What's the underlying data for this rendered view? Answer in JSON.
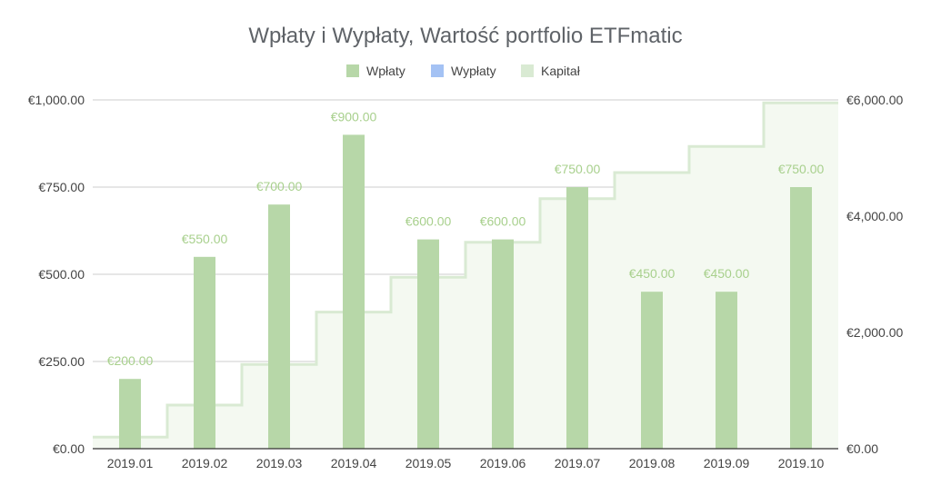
{
  "chart_data": {
    "type": "bar",
    "title": "Wpłaty i Wypłaty, Wartość portfolio  ETFmatic",
    "categories": [
      "2019.01",
      "2019.02",
      "2019.03",
      "2019.04",
      "2019.05",
      "2019.06",
      "2019.07",
      "2019.08",
      "2019.09",
      "2019.10"
    ],
    "legend": {
      "position": "top",
      "entries": [
        "Wpłaty",
        "Wypłaty",
        "Kapitał"
      ]
    },
    "series": [
      {
        "name": "Wpłaty",
        "type": "bar",
        "axis": "left",
        "color": "#b7d7a8",
        "values": [
          200,
          550,
          700,
          900,
          600,
          600,
          750,
          450,
          450,
          750
        ],
        "data_labels": [
          "€200.00",
          "€550.00",
          "€700.00",
          "€900.00",
          "€600.00",
          "€600.00",
          "€750.00",
          "€450.00",
          "€450.00",
          "€750.00"
        ]
      },
      {
        "name": "Wypłaty",
        "type": "bar",
        "axis": "left",
        "color": "#a4c2f4",
        "values": [
          0,
          0,
          0,
          0,
          0,
          0,
          0,
          0,
          0,
          0
        ]
      },
      {
        "name": "Kapitał",
        "type": "stepped-area",
        "axis": "right",
        "color": "#d9ead3",
        "values": [
          200,
          750,
          1450,
          2350,
          2950,
          3550,
          4300,
          4750,
          5200,
          5950
        ]
      }
    ],
    "y_left": {
      "ylim": [
        0,
        1000
      ],
      "ticks": [
        0,
        250,
        500,
        750,
        1000
      ],
      "tick_labels": [
        "€0.00",
        "€250.00",
        "€500.00",
        "€750.00",
        "€1,000.00"
      ]
    },
    "y_right": {
      "ylim": [
        0,
        6000
      ],
      "ticks": [
        0,
        2000,
        4000,
        6000
      ],
      "tick_labels": [
        "€0.00",
        "€2,000.00",
        "€4,000.00",
        "€6,000.00"
      ]
    },
    "grid": true,
    "label_color": "#a8d08d",
    "grid_color": "#cccccc",
    "axis_color": "#333333"
  }
}
